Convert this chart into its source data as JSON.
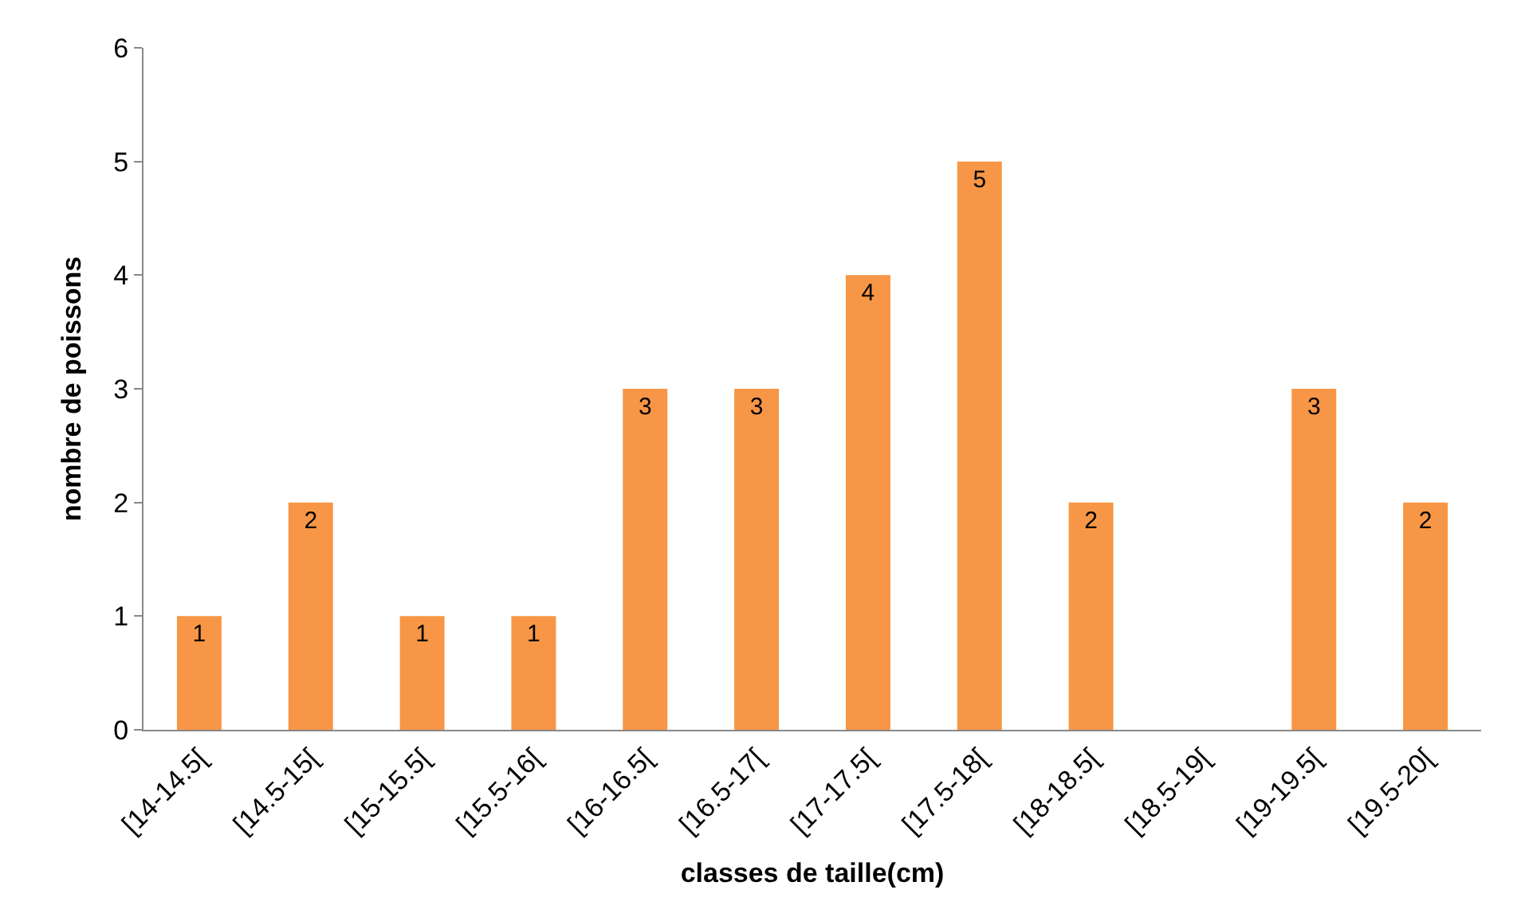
{
  "chart_data": {
    "type": "bar",
    "xlabel": "classes de taille(cm)",
    "ylabel": "nombre de poissons",
    "categories": [
      "[14-14.5[",
      "[14.5-15[",
      "[15-15.5[",
      "[15.5-16[",
      "[16-16.5[",
      "[16.5-17[",
      "[17-17.5[",
      "[17.5-18[",
      "[18-18.5[",
      "[18.5-19[",
      "[19-19.5[",
      "[19.5-20["
    ],
    "values": [
      1,
      2,
      1,
      1,
      3,
      3,
      4,
      5,
      2,
      0,
      3,
      2
    ],
    "value_labels": [
      "1",
      "2",
      "1",
      "1",
      "3",
      "3",
      "4",
      "5",
      "2",
      null,
      "3",
      "2"
    ],
    "color": "#f79646",
    "ylim": [
      0,
      6
    ],
    "yticks": [
      0,
      1,
      2,
      3,
      4,
      5,
      6
    ]
  }
}
